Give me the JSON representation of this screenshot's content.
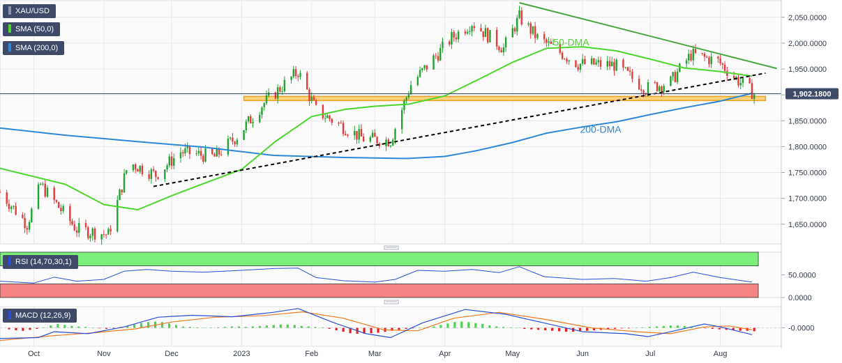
{
  "chart_data": [
    {
      "type": "candlestick",
      "title": "XAU/USD",
      "y_tick_labels": [
        "2,050.0000",
        "2,000.0000",
        "1,950.0000",
        "1,900.0000",
        "1,850.0000",
        "1,800.0000",
        "1,750.0000",
        "1,700.0000",
        "1,650.0000"
      ],
      "y_ticks": [
        2050,
        2000,
        1950,
        1900,
        1850,
        1800,
        1750,
        1700,
        1650
      ],
      "ylim": [
        1612,
        2082
      ],
      "x_tick_labels": [
        "Oct",
        "Nov",
        "Dec",
        "2023",
        "Feb",
        "Mar",
        "Apr",
        "May",
        "Jun",
        "Jul",
        "Aug"
      ],
      "x_ticks": [
        "2022-10-01",
        "2022-11-01",
        "2022-12-01",
        "2023-01-01",
        "2023-02-01",
        "2023-03-01",
        "2023-04-01",
        "2023-05-01",
        "2023-06-01",
        "2023-07-01",
        "2023-08-01"
      ],
      "x_range": [
        "2022-09-16",
        "2023-08-28"
      ],
      "last_price_label": "1,902.1800",
      "last_price": 1902.18,
      "grid": true,
      "colors": {
        "up": "#21a32f",
        "down": "#e43a3a",
        "sma50": "#4cd62b",
        "sma200": "#2d87d6",
        "trend_down": "#4aa540",
        "support_line": "#000000",
        "zone_fill": "#ffd280",
        "zone_border": "#f0a21c",
        "price_line": "#3f4a68",
        "label_bg": "#3f4a68"
      },
      "series": [
        {
          "name": "SMA (50,0)",
          "points": [
            [
              "2022-09-16",
              1758
            ],
            [
              "2022-10-15",
              1727
            ],
            [
              "2022-11-01",
              1688
            ],
            [
              "2022-11-16",
              1678
            ],
            [
              "2022-12-01",
              1705
            ],
            [
              "2022-12-16",
              1730
            ],
            [
              "2023-01-01",
              1756
            ],
            [
              "2023-01-16",
              1810
            ],
            [
              "2023-02-01",
              1858
            ],
            [
              "2023-02-16",
              1872
            ],
            [
              "2023-03-01",
              1878
            ],
            [
              "2023-03-16",
              1882
            ],
            [
              "2023-04-01",
              1898
            ],
            [
              "2023-04-16",
              1930
            ],
            [
              "2023-05-01",
              1963
            ],
            [
              "2023-05-16",
              1990
            ],
            [
              "2023-06-01",
              1993
            ],
            [
              "2023-06-16",
              1985
            ],
            [
              "2023-07-01",
              1969
            ],
            [
              "2023-07-16",
              1952
            ],
            [
              "2023-08-01",
              1945
            ],
            [
              "2023-08-15",
              1936
            ]
          ]
        },
        {
          "name": "SMA (200,0)",
          "points": [
            [
              "2022-09-16",
              1836
            ],
            [
              "2022-10-15",
              1822
            ],
            [
              "2022-11-15",
              1810
            ],
            [
              "2022-12-15",
              1799
            ],
            [
              "2023-01-15",
              1783
            ],
            [
              "2023-02-15",
              1779
            ],
            [
              "2023-03-15",
              1777
            ],
            [
              "2023-04-01",
              1781
            ],
            [
              "2023-04-15",
              1792
            ],
            [
              "2023-05-01",
              1808
            ],
            [
              "2023-05-16",
              1826
            ],
            [
              "2023-06-01",
              1838
            ],
            [
              "2023-06-16",
              1848
            ],
            [
              "2023-07-01",
              1862
            ],
            [
              "2023-07-16",
              1875
            ],
            [
              "2023-08-01",
              1888
            ],
            [
              "2023-08-15",
              1903
            ]
          ]
        }
      ],
      "annotations": [
        {
          "text": "50-DMA",
          "x": "2023-05-27",
          "y": 1995
        },
        {
          "text": "200-DMA",
          "x": "2023-06-09",
          "y": 1827
        },
        {
          "type": "trendline",
          "style": "solid",
          "points": [
            [
              "2023-05-04",
              2078
            ],
            [
              "2023-08-26",
              1951
            ]
          ]
        },
        {
          "type": "trendline",
          "style": "dashed",
          "points": [
            [
              "2022-11-23",
              1723
            ],
            [
              "2023-08-21",
              1942
            ]
          ]
        },
        {
          "type": "zone",
          "y": [
            1889,
            1897
          ],
          "x": [
            "2023-01-02",
            "2023-08-21"
          ]
        },
        {
          "type": "hline",
          "y": 1902.18
        }
      ]
    },
    {
      "type": "line",
      "title": "RSI (14,70,30,1)",
      "y_tick_labels": [
        "50.0000",
        "0.0000"
      ],
      "y_ticks": [
        50,
        0
      ],
      "ylim": [
        0,
        100
      ],
      "bands": {
        "overbought": [
          70,
          100
        ],
        "oversold": [
          0,
          30
        ],
        "overbought_color": "#7af07a",
        "oversold_color": "#f58383"
      },
      "series": [
        {
          "name": "RSI",
          "points": [
            [
              "2022-09-16",
              36
            ],
            [
              "2022-10-01",
              32
            ],
            [
              "2022-10-10",
              45
            ],
            [
              "2022-10-20",
              36
            ],
            [
              "2022-11-01",
              40
            ],
            [
              "2022-11-10",
              58
            ],
            [
              "2022-11-20",
              62
            ],
            [
              "2022-12-01",
              58
            ],
            [
              "2022-12-15",
              56
            ],
            [
              "2023-01-01",
              60
            ],
            [
              "2023-01-15",
              64
            ],
            [
              "2023-01-26",
              65
            ],
            [
              "2023-02-03",
              44
            ],
            [
              "2023-02-15",
              37
            ],
            [
              "2023-03-01",
              34
            ],
            [
              "2023-03-10",
              40
            ],
            [
              "2023-03-20",
              60
            ],
            [
              "2023-04-01",
              58
            ],
            [
              "2023-04-13",
              62
            ],
            [
              "2023-04-25",
              55
            ],
            [
              "2023-05-04",
              68
            ],
            [
              "2023-05-15",
              46
            ],
            [
              "2023-06-01",
              40
            ],
            [
              "2023-06-15",
              42
            ],
            [
              "2023-06-29",
              36
            ],
            [
              "2023-07-10",
              44
            ],
            [
              "2023-07-20",
              56
            ],
            [
              "2023-08-01",
              44
            ],
            [
              "2023-08-15",
              34
            ]
          ]
        }
      ]
    },
    {
      "type": "bar+line",
      "title": "MACD (12,26,9)",
      "y_tick_labels": [
        "-0.0000"
      ],
      "y_ticks": [
        0
      ],
      "ylim": [
        -38,
        44
      ],
      "colors": {
        "macd": "#2a4fd6",
        "signal": "#f07a1c",
        "hist_up": "#4ed14e",
        "hist_down": "#e81e1e"
      },
      "series": [
        {
          "name": "MACD",
          "points": [
            [
              "2022-09-16",
              -22
            ],
            [
              "2022-10-03",
              -20
            ],
            [
              "2022-10-10",
              -8
            ],
            [
              "2022-10-25",
              -12
            ],
            [
              "2022-11-10",
              2
            ],
            [
              "2022-11-25",
              22
            ],
            [
              "2022-12-10",
              26
            ],
            [
              "2022-12-28",
              23
            ],
            [
              "2023-01-15",
              32
            ],
            [
              "2023-01-26",
              40
            ],
            [
              "2023-02-10",
              12
            ],
            [
              "2023-02-25",
              -12
            ],
            [
              "2023-03-08",
              -20
            ],
            [
              "2023-03-22",
              10
            ],
            [
              "2023-04-10",
              38
            ],
            [
              "2023-04-28",
              28
            ],
            [
              "2023-05-15",
              10
            ],
            [
              "2023-06-01",
              -8
            ],
            [
              "2023-06-20",
              -12
            ],
            [
              "2023-06-30",
              -18
            ],
            [
              "2023-07-10",
              -8
            ],
            [
              "2023-07-25",
              8
            ],
            [
              "2023-08-01",
              2
            ],
            [
              "2023-08-15",
              -14
            ]
          ]
        },
        {
          "name": "Signal",
          "points": [
            [
              "2022-09-16",
              -26
            ],
            [
              "2022-10-10",
              -16
            ],
            [
              "2022-10-28",
              -10
            ],
            [
              "2022-11-15",
              -2
            ],
            [
              "2022-12-01",
              12
            ],
            [
              "2022-12-20",
              22
            ],
            [
              "2023-01-10",
              25
            ],
            [
              "2023-01-28",
              33
            ],
            [
              "2023-02-15",
              20
            ],
            [
              "2023-03-05",
              -4
            ],
            [
              "2023-03-20",
              -6
            ],
            [
              "2023-04-05",
              20
            ],
            [
              "2023-04-25",
              32
            ],
            [
              "2023-05-15",
              18
            ],
            [
              "2023-06-05",
              0
            ],
            [
              "2023-06-25",
              -8
            ],
            [
              "2023-07-10",
              -12
            ],
            [
              "2023-07-25",
              2
            ],
            [
              "2023-08-05",
              4
            ],
            [
              "2023-08-15",
              -4
            ]
          ]
        }
      ],
      "histogram": [
        [
          -3,
          -5,
          -6,
          -4,
          -2,
          1,
          5,
          8,
          6,
          4,
          3,
          2,
          0,
          -1,
          -2,
          -1,
          2,
          4,
          7,
          10,
          12,
          13,
          12,
          9,
          6,
          3,
          2,
          1,
          0,
          0,
          1,
          2,
          3,
          3,
          2,
          3,
          4,
          5,
          6,
          7,
          7,
          6,
          4,
          3,
          2,
          1,
          -2,
          -5,
          -8,
          -11,
          -12,
          -12,
          -11,
          -10,
          -8,
          -6,
          -4,
          -2,
          -1,
          0,
          1,
          3,
          6,
          9,
          12,
          13,
          12,
          10,
          8,
          5,
          3,
          2,
          1,
          0,
          -2,
          -3,
          -4,
          -5,
          -6,
          -7,
          -8,
          -8,
          -7,
          -6,
          -5,
          -4,
          -3,
          -2,
          -1,
          -1,
          0,
          1,
          2,
          3,
          4,
          5,
          5,
          4,
          3,
          1,
          -1,
          -2,
          -3,
          -4,
          -5,
          -6,
          -6,
          -7
        ]
      ]
    }
  ]
}
